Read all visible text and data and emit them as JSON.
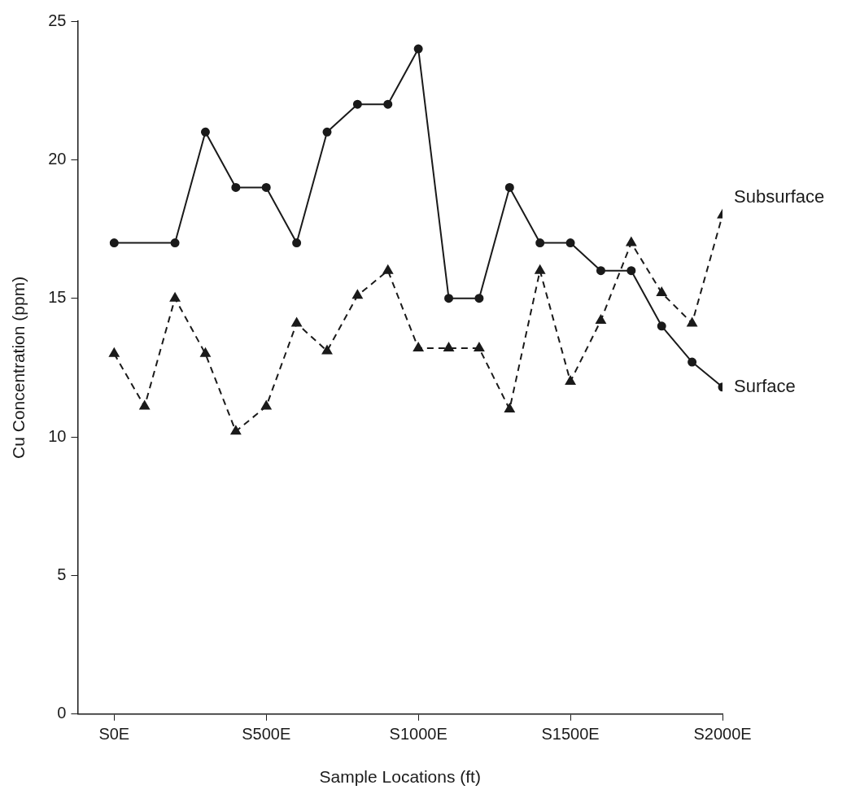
{
  "chart_data": {
    "type": "line",
    "xlabel": "Sample Locations (ft)",
    "ylabel": "Cu Concentration (ppm)",
    "categories": [
      "S0E",
      null,
      null,
      null,
      null,
      "S500E",
      null,
      null,
      null,
      null,
      "S1000E",
      null,
      null,
      null,
      null,
      "S1500E",
      null,
      null,
      null,
      null,
      "S2000E"
    ],
    "ylim": [
      0,
      25
    ],
    "yticks": [
      0,
      5,
      10,
      15,
      20,
      25
    ],
    "grid": false,
    "legend": false,
    "series": [
      {
        "name": "Surface",
        "color": "#1a1a1a",
        "marker": "circle",
        "line_style": "solid",
        "values": [
          17,
          null,
          17,
          21,
          19,
          19,
          17,
          21,
          22,
          22,
          24,
          15,
          15,
          19,
          17,
          17,
          16,
          16,
          14,
          12.7,
          11.8
        ]
      },
      {
        "name": "Subsurface",
        "color": "#1a1a1a",
        "marker": "triangle",
        "line_style": "dashed",
        "values": [
          13,
          11.1,
          15,
          13,
          10.2,
          11.1,
          14.1,
          13.1,
          15.1,
          16,
          13.2,
          13.2,
          13.2,
          11,
          16,
          12,
          14.2,
          17,
          15.2,
          14.1,
          18
        ]
      }
    ]
  }
}
